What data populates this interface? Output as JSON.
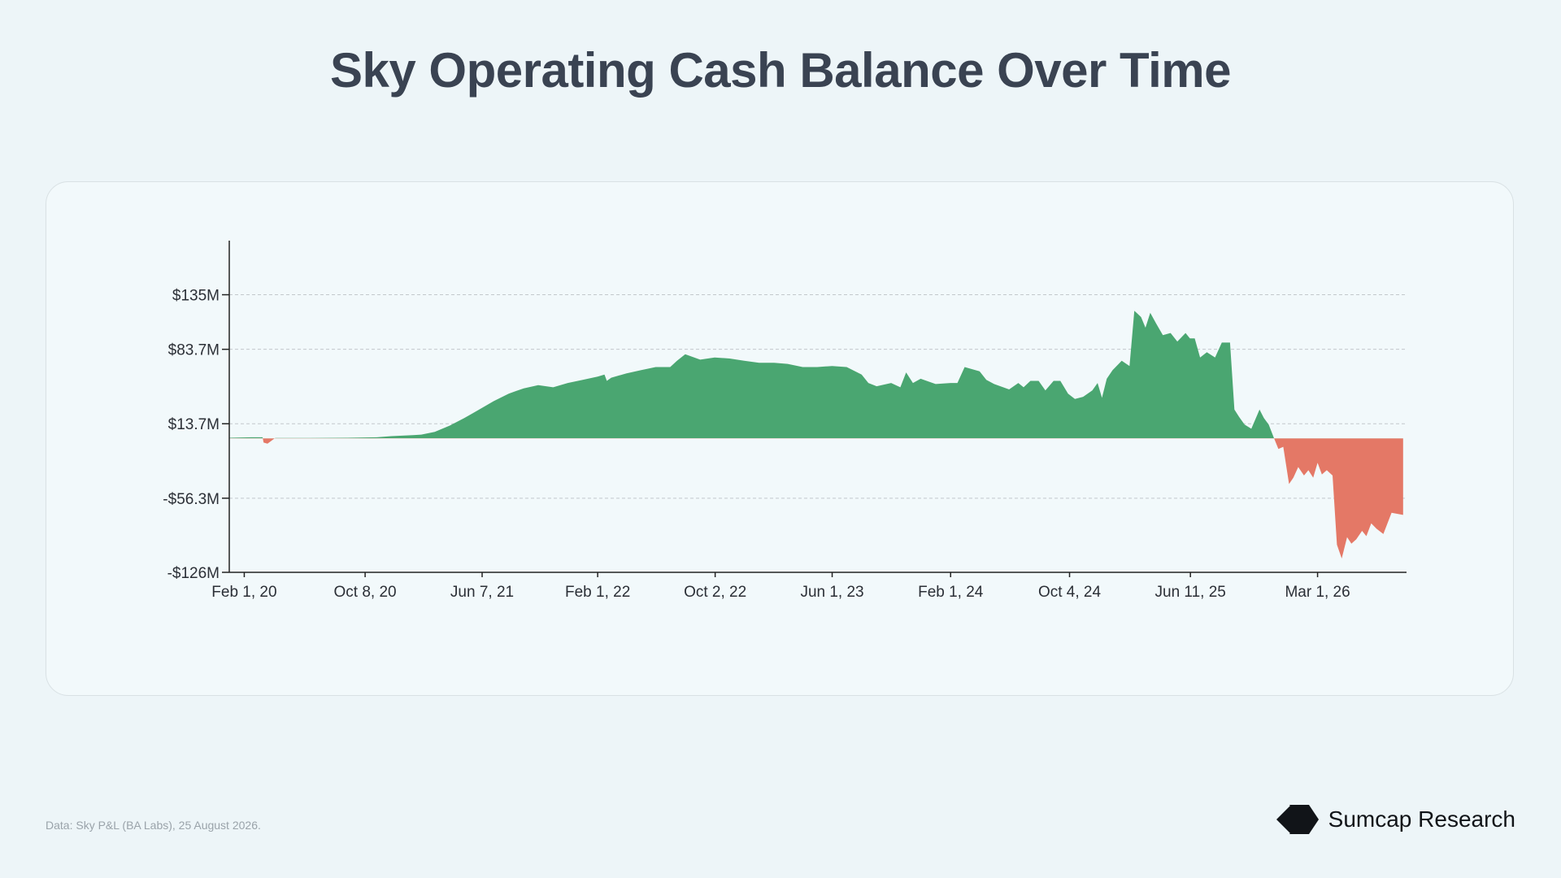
{
  "page": {
    "title": "Sky Operating Cash Balance Over Time",
    "source": "Data: Sky P&L (BA Labs), 25 August 2026.",
    "brand": "Sumcap Research",
    "brand_icon": "diamond-chevron-logo-icon"
  },
  "colors": {
    "positive": "#4aa671",
    "negative": "#e47866",
    "grid": "#c3c8cc",
    "axis": "#222222"
  },
  "chart_data": {
    "type": "area",
    "title": "Sky Operating Cash Balance Over Time",
    "xlabel": "",
    "ylabel": "",
    "x_unit": "date",
    "y_unit": "USD millions",
    "ylim": [
      -126,
      153
    ],
    "xlim": [
      "2020-01-01",
      "2026-09-01"
    ],
    "y_ticks": [
      {
        "value": 135,
        "label": "$135M"
      },
      {
        "value": 83.7,
        "label": "$83.7M"
      },
      {
        "value": 13.7,
        "label": "$13.7M"
      },
      {
        "value": -56.3,
        "label": "-$56.3M"
      },
      {
        "value": -126,
        "label": "-$126M"
      }
    ],
    "x_ticks": [
      {
        "date": "2020-02-01",
        "label": "Feb 1, 20"
      },
      {
        "date": "2020-10-08",
        "label": "Oct 8, 20"
      },
      {
        "date": "2021-06-07",
        "label": "Jun 7, 21"
      },
      {
        "date": "2022-02-01",
        "label": "Feb 1, 22"
      },
      {
        "date": "2022-10-02",
        "label": "Oct 2, 22"
      },
      {
        "date": "2023-06-01",
        "label": "Jun 1, 23"
      },
      {
        "date": "2024-02-01",
        "label": "Feb 1, 24"
      },
      {
        "date": "2024-10-04",
        "label": "Oct 4, 24"
      },
      {
        "date": "2025-06-11",
        "label": "Jun 11, 25"
      },
      {
        "date": "2026-03-01",
        "label": "Mar 1, 26"
      }
    ],
    "grid": "horizontal dashed",
    "legend": "none",
    "series": [
      {
        "points": [
          [
            "2020-01-01",
            0.5
          ],
          [
            "2020-02-15",
            1.0
          ],
          [
            "2020-03-10",
            1.0
          ],
          [
            "2020-03-12",
            -4.0
          ],
          [
            "2020-03-20",
            -5.0
          ],
          [
            "2020-04-01",
            -1.0
          ],
          [
            "2020-04-05",
            0.3
          ],
          [
            "2020-06-01",
            0.3
          ],
          [
            "2020-09-01",
            0.5
          ],
          [
            "2020-11-01",
            1.0
          ],
          [
            "2020-12-01",
            2.0
          ],
          [
            "2021-01-15",
            3.0
          ],
          [
            "2021-02-01",
            3.5
          ],
          [
            "2021-03-01",
            6.0
          ],
          [
            "2021-04-01",
            12.0
          ],
          [
            "2021-05-01",
            19.0
          ],
          [
            "2021-06-01",
            27.0
          ],
          [
            "2021-07-01",
            35.0
          ],
          [
            "2021-08-01",
            42.0
          ],
          [
            "2021-09-01",
            47.0
          ],
          [
            "2021-10-01",
            50.0
          ],
          [
            "2021-11-01",
            48.0
          ],
          [
            "2021-12-01",
            52.0
          ],
          [
            "2022-01-01",
            55.0
          ],
          [
            "2022-02-01",
            58.0
          ],
          [
            "2022-02-15",
            60.0
          ],
          [
            "2022-02-20",
            54.0
          ],
          [
            "2022-03-01",
            57.0
          ],
          [
            "2022-04-01",
            61.0
          ],
          [
            "2022-05-01",
            64.0
          ],
          [
            "2022-06-01",
            67.0
          ],
          [
            "2022-07-01",
            67.0
          ],
          [
            "2022-07-15",
            73.0
          ],
          [
            "2022-08-01",
            79.0
          ],
          [
            "2022-09-01",
            74.0
          ],
          [
            "2022-10-01",
            76.0
          ],
          [
            "2022-11-01",
            75.0
          ],
          [
            "2022-12-01",
            73.0
          ],
          [
            "2023-01-01",
            71.0
          ],
          [
            "2023-02-01",
            71.0
          ],
          [
            "2023-03-01",
            70.0
          ],
          [
            "2023-04-01",
            67.0
          ],
          [
            "2023-05-01",
            67.0
          ],
          [
            "2023-06-01",
            68.0
          ],
          [
            "2023-07-01",
            67.0
          ],
          [
            "2023-08-01",
            60.0
          ],
          [
            "2023-08-15",
            52.0
          ],
          [
            "2023-09-01",
            49.0
          ],
          [
            "2023-10-01",
            52.0
          ],
          [
            "2023-10-20",
            48.0
          ],
          [
            "2023-11-01",
            62.0
          ],
          [
            "2023-11-15",
            52.0
          ],
          [
            "2023-12-01",
            56.0
          ],
          [
            "2024-01-01",
            51.0
          ],
          [
            "2024-02-01",
            52.0
          ],
          [
            "2024-02-15",
            52.0
          ],
          [
            "2024-03-01",
            67.0
          ],
          [
            "2024-04-01",
            63.0
          ],
          [
            "2024-04-15",
            55.0
          ],
          [
            "2024-05-01",
            51.0
          ],
          [
            "2024-06-01",
            46.0
          ],
          [
            "2024-06-20",
            52.0
          ],
          [
            "2024-07-01",
            48.0
          ],
          [
            "2024-07-15",
            54.0
          ],
          [
            "2024-08-01",
            54.0
          ],
          [
            "2024-08-15",
            45.0
          ],
          [
            "2024-09-01",
            54.0
          ],
          [
            "2024-09-15",
            54.0
          ],
          [
            "2024-10-01",
            42.0
          ],
          [
            "2024-10-15",
            37.0
          ],
          [
            "2024-11-01",
            39.0
          ],
          [
            "2024-11-20",
            45.0
          ],
          [
            "2024-12-01",
            52.0
          ],
          [
            "2024-12-10",
            38.0
          ],
          [
            "2024-12-20",
            56.0
          ],
          [
            "2025-01-01",
            64.0
          ],
          [
            "2025-01-20",
            73.0
          ],
          [
            "2025-02-05",
            68.0
          ],
          [
            "2025-02-15",
            120.0
          ],
          [
            "2025-03-01",
            114.0
          ],
          [
            "2025-03-10",
            104.0
          ],
          [
            "2025-03-20",
            118.0
          ],
          [
            "2025-04-01",
            108.0
          ],
          [
            "2025-04-15",
            97.0
          ],
          [
            "2025-05-01",
            99.0
          ],
          [
            "2025-05-15",
            91.0
          ],
          [
            "2025-06-01",
            99.0
          ],
          [
            "2025-06-10",
            94.0
          ],
          [
            "2025-06-20",
            94.0
          ],
          [
            "2025-07-01",
            76.0
          ],
          [
            "2025-07-15",
            81.0
          ],
          [
            "2025-08-01",
            76.0
          ],
          [
            "2025-08-15",
            90.0
          ],
          [
            "2025-09-01",
            90.0
          ],
          [
            "2025-09-10",
            27.0
          ],
          [
            "2025-09-20",
            20.0
          ],
          [
            "2025-10-01",
            13.0
          ],
          [
            "2025-10-15",
            9.0
          ],
          [
            "2025-11-01",
            27.0
          ],
          [
            "2025-11-10",
            19.0
          ],
          [
            "2025-11-20",
            13.0
          ],
          [
            "2025-12-01",
            0.0
          ],
          [
            "2025-12-10",
            -10.0
          ],
          [
            "2025-12-20",
            -8.0
          ],
          [
            "2026-01-01",
            -43.0
          ],
          [
            "2026-01-10",
            -37.0
          ],
          [
            "2026-01-20",
            -27.0
          ],
          [
            "2026-02-01",
            -35.0
          ],
          [
            "2026-02-10",
            -30.0
          ],
          [
            "2026-02-20",
            -37.0
          ],
          [
            "2026-03-01",
            -23.0
          ],
          [
            "2026-03-10",
            -34.0
          ],
          [
            "2026-03-20",
            -30.0
          ],
          [
            "2026-04-01",
            -35.0
          ],
          [
            "2026-04-10",
            -100.0
          ],
          [
            "2026-04-20",
            -113.0
          ],
          [
            "2026-05-01",
            -93.0
          ],
          [
            "2026-05-10",
            -99.0
          ],
          [
            "2026-05-20",
            -95.0
          ],
          [
            "2026-06-01",
            -87.0
          ],
          [
            "2026-06-10",
            -92.0
          ],
          [
            "2026-06-20",
            -80.0
          ],
          [
            "2026-07-01",
            -85.0
          ],
          [
            "2026-07-15",
            -90.0
          ],
          [
            "2026-08-01",
            -70.0
          ],
          [
            "2026-08-25",
            -72.0
          ]
        ]
      }
    ]
  }
}
